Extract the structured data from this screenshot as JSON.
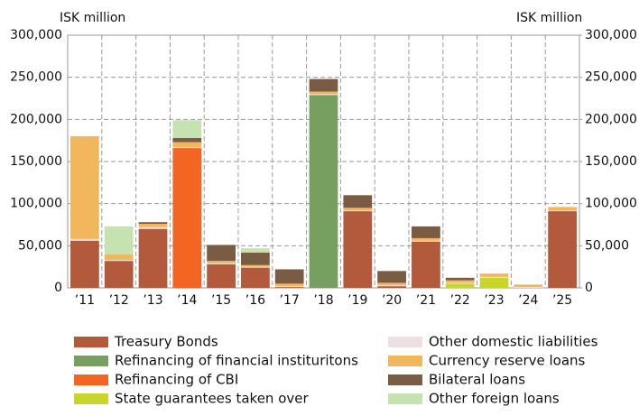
{
  "chart_data": {
    "type": "stacked_bar",
    "y_label": "ISK million",
    "y2_label": "ISK million",
    "categories": [
      "’11",
      "’12",
      "’13",
      "’14",
      "’15",
      "’16",
      "’17",
      "’18",
      "’19",
      "’20",
      "’21",
      "’22",
      "’23",
      "’24",
      "’25"
    ],
    "series": [
      {
        "name": "Treasury Bonds",
        "color": "#b35a3c",
        "values": [
          56000,
          32000,
          70000,
          0,
          28000,
          24000,
          1000,
          0,
          91000,
          2000,
          55000,
          0,
          0,
          0,
          91000
        ]
      },
      {
        "name": "Refinancing of financial instituritons",
        "color": "#77a060",
        "values": [
          0,
          0,
          0,
          0,
          0,
          0,
          0,
          229000,
          0,
          0,
          0,
          0,
          0,
          0,
          0
        ]
      },
      {
        "name": "Refinancing of CBI",
        "color": "#f26522",
        "values": [
          0,
          0,
          0,
          166000,
          0,
          0,
          0,
          0,
          0,
          0,
          0,
          0,
          0,
          0,
          0
        ]
      },
      {
        "name": "State guarantees taken over",
        "color": "#c8d62b",
        "values": [
          0,
          0,
          0,
          0,
          0,
          0,
          0,
          0,
          0,
          0,
          0,
          5000,
          12000,
          0,
          0
        ]
      },
      {
        "name": "Other domestic liabilities",
        "color": "#ede0e0",
        "values": [
          2000,
          1000,
          2000,
          1000,
          1000,
          1000,
          1000,
          1000,
          1000,
          1000,
          1000,
          1000,
          1000,
          1000,
          1000
        ]
      },
      {
        "name": "Currency reserve loans",
        "color": "#f2b75c",
        "values": [
          122000,
          7000,
          4000,
          6000,
          3000,
          2000,
          3000,
          3000,
          3000,
          3000,
          3000,
          3000,
          4000,
          3000,
          4000
        ]
      },
      {
        "name": "Bilateral loans",
        "color": "#7a5c45",
        "values": [
          0,
          0,
          2000,
          5000,
          19000,
          15000,
          17000,
          15000,
          15000,
          14000,
          14000,
          3000,
          0,
          0,
          0
        ]
      },
      {
        "name": "Other foreign loans",
        "color": "#c5e3b0",
        "values": [
          0,
          33000,
          0,
          21000,
          0,
          5000,
          0,
          0,
          0,
          0,
          0,
          0,
          0,
          0,
          0
        ]
      }
    ],
    "ylim": [
      0,
      300000
    ],
    "yticks": [
      0,
      {
        "value": 50000,
        "label": "50,000"
      },
      {
        "value": 100000,
        "label": "100,000"
      },
      {
        "value": 150000,
        "label": "150,000"
      },
      {
        "value": 200000,
        "label": "200,000"
      },
      {
        "value": 250000,
        "label": "250,000"
      },
      {
        "value": 300000,
        "label": "300,000"
      }
    ],
    "y2lim": [
      0,
      300000
    ],
    "y2ticks": [
      0,
      {
        "value": 50000,
        "label": "50,000"
      },
      {
        "value": 100000,
        "label": "100,000"
      },
      {
        "value": 150000,
        "label": "150,000"
      },
      {
        "value": 200000,
        "label": "200,000"
      },
      {
        "value": 250000,
        "label": "250,000"
      },
      {
        "value": 300000,
        "label": "300,000"
      }
    ],
    "grid": true
  }
}
